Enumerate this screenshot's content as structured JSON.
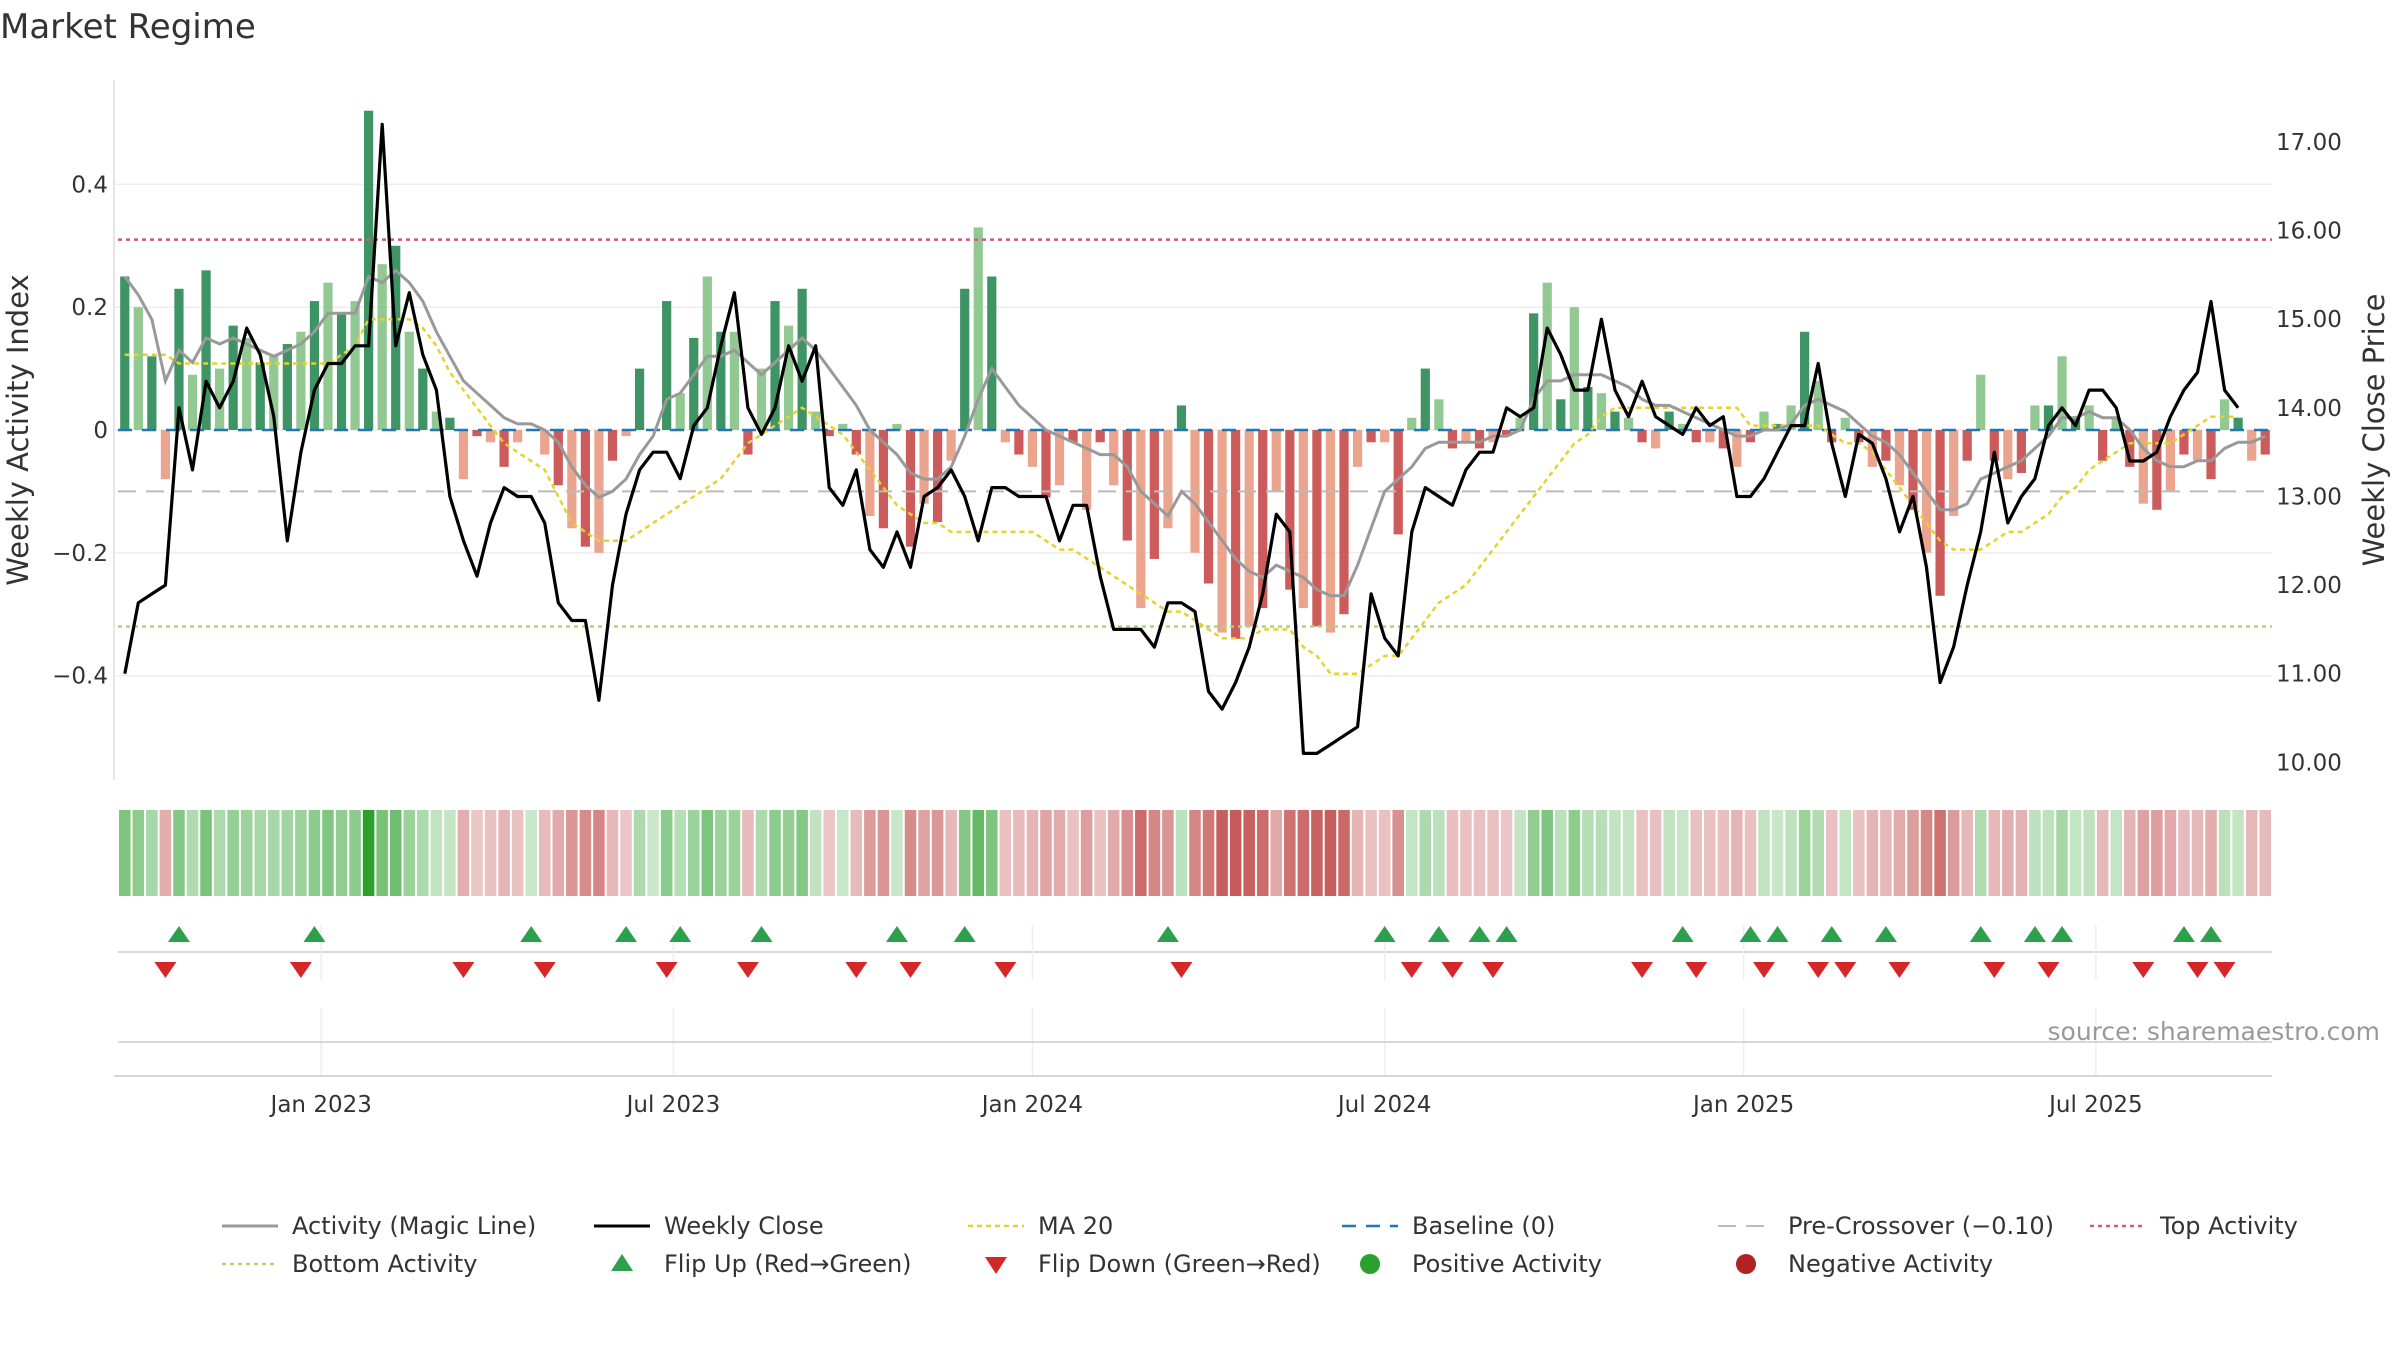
{
  "chart_data": {
    "type": "bar",
    "title": "Market Regime",
    "ylabel_left": "Weekly Activity Index",
    "ylabel_right": "Weekly Close Price",
    "ylim_left": [
      -0.57,
      0.57
    ],
    "ylim_right": [
      9.8,
      17.7
    ],
    "y_ticks_left": [
      {
        "value": 0.4,
        "label": "0.4"
      },
      {
        "value": 0.2,
        "label": "0.2"
      },
      {
        "value": 0,
        "label": "0"
      },
      {
        "value": -0.2,
        "label": "−0.2"
      },
      {
        "value": -0.4,
        "label": "−0.4"
      }
    ],
    "y_ticks_right": [
      {
        "value": 17,
        "label": "17.00"
      },
      {
        "value": 16,
        "label": "16.00"
      },
      {
        "value": 15,
        "label": "15.00"
      },
      {
        "value": 14,
        "label": "14.00"
      },
      {
        "value": 13,
        "label": "13.00"
      },
      {
        "value": 12,
        "label": "12.00"
      },
      {
        "value": 11,
        "label": "11.00"
      },
      {
        "value": 10,
        "label": "10.00"
      }
    ],
    "x_ticks": [
      {
        "index": 14.5,
        "label": "Jan 2023"
      },
      {
        "index": 40.5,
        "label": "Jul 2023"
      },
      {
        "index": 67,
        "label": "Jan 2024"
      },
      {
        "index": 93,
        "label": "Jul 2024"
      },
      {
        "index": 119.5,
        "label": "Jan 2025"
      },
      {
        "index": 145.5,
        "label": "Jul 2025"
      }
    ],
    "reference_lines": {
      "top_activity": 0.31,
      "bottom_activity": -0.32,
      "pre_crossover": -0.1,
      "baseline": 0
    },
    "activity": [
      0.25,
      0.2,
      0.12,
      -0.08,
      0.23,
      0.09,
      0.26,
      0.1,
      0.17,
      0.15,
      0.11,
      0.12,
      0.14,
      0.16,
      0.21,
      0.24,
      0.19,
      0.21,
      0.52,
      0.27,
      0.3,
      0.16,
      0.1,
      0.03,
      0.02,
      -0.08,
      -0.01,
      -0.02,
      -0.06,
      -0.02,
      0.0,
      -0.04,
      -0.09,
      -0.16,
      -0.19,
      -0.2,
      -0.05,
      -0.01,
      0.1,
      0.0,
      0.21,
      0.06,
      0.15,
      0.25,
      0.16,
      0.16,
      -0.04,
      0.1,
      0.21,
      0.17,
      0.23,
      0.03,
      -0.01,
      0.01,
      -0.04,
      -0.14,
      -0.16,
      0.01,
      -0.19,
      -0.12,
      -0.15,
      -0.05,
      0.23,
      0.33,
      0.25,
      -0.02,
      -0.04,
      -0.06,
      -0.11,
      -0.09,
      -0.02,
      -0.13,
      -0.02,
      -0.09,
      -0.18,
      -0.29,
      -0.21,
      -0.16,
      0.04,
      -0.2,
      -0.25,
      -0.33,
      -0.34,
      -0.32,
      -0.29,
      -0.1,
      -0.26,
      -0.29,
      -0.32,
      -0.33,
      -0.3,
      -0.06,
      -0.02,
      -0.02,
      -0.17,
      0.02,
      0.1,
      0.05,
      -0.03,
      -0.02,
      -0.03,
      -0.02,
      -0.01,
      0.02,
      0.19,
      0.24,
      0.05,
      0.2,
      0.07,
      0.06,
      0.03,
      0.02,
      -0.02,
      -0.03,
      0.03,
      0.01,
      -0.02,
      -0.02,
      -0.03,
      -0.06,
      -0.02,
      0.03,
      0.01,
      0.04,
      0.16,
      0.08,
      -0.02,
      0.02,
      -0.02,
      -0.06,
      -0.05,
      -0.09,
      -0.13,
      -0.2,
      -0.27,
      -0.14,
      -0.05,
      0.09,
      -0.05,
      -0.08,
      -0.07,
      0.04,
      0.04,
      0.12,
      0.02,
      0.04,
      -0.05,
      0.02,
      -0.06,
      -0.12,
      -0.13,
      -0.1,
      -0.04,
      -0.05,
      -0.08,
      0.05,
      0.02,
      -0.05,
      -0.04
    ],
    "activity_line": [
      0.25,
      0.22,
      0.18,
      0.08,
      0.13,
      0.11,
      0.15,
      0.14,
      0.15,
      0.14,
      0.13,
      0.12,
      0.13,
      0.14,
      0.16,
      0.19,
      0.19,
      0.19,
      0.25,
      0.24,
      0.26,
      0.24,
      0.21,
      0.16,
      0.12,
      0.08,
      0.06,
      0.04,
      0.02,
      0.01,
      0.01,
      0.0,
      -0.02,
      -0.06,
      -0.09,
      -0.11,
      -0.1,
      -0.08,
      -0.04,
      -0.01,
      0.05,
      0.06,
      0.09,
      0.12,
      0.12,
      0.13,
      0.11,
      0.09,
      0.11,
      0.13,
      0.15,
      0.13,
      0.1,
      0.07,
      0.04,
      0.0,
      -0.02,
      -0.04,
      -0.07,
      -0.08,
      -0.08,
      -0.06,
      -0.01,
      0.05,
      0.1,
      0.07,
      0.04,
      0.02,
      0.0,
      -0.01,
      -0.02,
      -0.03,
      -0.04,
      -0.04,
      -0.06,
      -0.1,
      -0.12,
      -0.14,
      -0.1,
      -0.12,
      -0.15,
      -0.18,
      -0.21,
      -0.23,
      -0.24,
      -0.22,
      -0.23,
      -0.24,
      -0.26,
      -0.27,
      -0.27,
      -0.22,
      -0.16,
      -0.1,
      -0.08,
      -0.06,
      -0.03,
      -0.02,
      -0.02,
      -0.02,
      -0.02,
      -0.01,
      -0.01,
      0.0,
      0.05,
      0.08,
      0.08,
      0.09,
      0.09,
      0.09,
      0.08,
      0.07,
      0.05,
      0.04,
      0.04,
      0.03,
      0.02,
      0.01,
      0.0,
      -0.01,
      -0.01,
      0.0,
      0.0,
      0.01,
      0.04,
      0.05,
      0.04,
      0.03,
      0.01,
      -0.01,
      -0.02,
      -0.04,
      -0.07,
      -0.1,
      -0.13,
      -0.13,
      -0.12,
      -0.08,
      -0.07,
      -0.06,
      -0.05,
      -0.03,
      -0.01,
      0.02,
      0.02,
      0.03,
      0.02,
      0.02,
      0.0,
      -0.03,
      -0.05,
      -0.06,
      -0.06,
      -0.05,
      -0.05,
      -0.03,
      -0.02,
      -0.02,
      -0.01
    ],
    "weekly_close": [
      11.0,
      11.8,
      11.9,
      12.0,
      14.0,
      13.3,
      14.3,
      14.0,
      14.3,
      14.9,
      14.6,
      13.9,
      12.5,
      13.5,
      14.2,
      14.5,
      14.5,
      14.7,
      14.7,
      17.2,
      14.7,
      15.3,
      14.6,
      14.2,
      13.0,
      12.5,
      12.1,
      12.7,
      13.1,
      13.0,
      13.0,
      12.7,
      11.8,
      11.6,
      11.6,
      10.7,
      12.0,
      12.8,
      13.3,
      13.5,
      13.5,
      13.2,
      13.8,
      14.0,
      14.7,
      15.3,
      14.0,
      13.7,
      14.0,
      14.7,
      14.3,
      14.7,
      13.1,
      12.9,
      13.3,
      12.4,
      12.2,
      12.6,
      12.2,
      13.0,
      13.1,
      13.3,
      13.0,
      12.5,
      13.1,
      13.1,
      13.0,
      13.0,
      13.0,
      12.5,
      12.9,
      12.9,
      12.1,
      11.5,
      11.5,
      11.5,
      11.3,
      11.8,
      11.8,
      11.7,
      10.8,
      10.6,
      10.9,
      11.3,
      11.9,
      12.8,
      12.6,
      10.1,
      10.1,
      10.2,
      10.3,
      10.4,
      11.9,
      11.4,
      11.2,
      12.6,
      13.1,
      13.0,
      12.9,
      13.3,
      13.5,
      13.5,
      14.0,
      13.9,
      14.0,
      14.9,
      14.6,
      14.2,
      14.2,
      15.0,
      14.2,
      13.9,
      14.3,
      13.9,
      13.8,
      13.7,
      14.0,
      13.8,
      13.9,
      13.0,
      13.0,
      13.2,
      13.5,
      13.8,
      13.8,
      14.5,
      13.6,
      13.0,
      13.7,
      13.6,
      13.2,
      12.6,
      13.0,
      12.2,
      10.9,
      11.3,
      12.0,
      12.6,
      13.5,
      12.7,
      13.0,
      13.2,
      13.8,
      14.0,
      13.8,
      14.2,
      14.2,
      14.0,
      13.4,
      13.4,
      13.5,
      13.9,
      14.2,
      14.4,
      15.2,
      14.2,
      14.0
    ],
    "ma20": [
      14.6,
      14.6,
      14.6,
      14.6,
      14.5,
      14.5,
      14.5,
      14.5,
      14.5,
      14.5,
      14.5,
      14.5,
      14.5,
      14.5,
      14.5,
      14.5,
      14.6,
      14.7,
      15.0,
      15.0,
      15.0,
      15.0,
      14.9,
      14.7,
      14.4,
      14.2,
      14.0,
      13.8,
      13.6,
      13.5,
      13.4,
      13.3,
      13.0,
      12.7,
      12.6,
      12.5,
      12.5,
      12.5,
      12.6,
      12.7,
      12.8,
      12.9,
      13.0,
      13.1,
      13.2,
      13.4,
      13.6,
      13.7,
      13.8,
      13.9,
      14.0,
      13.9,
      13.8,
      13.7,
      13.5,
      13.3,
      13.1,
      12.9,
      12.8,
      12.7,
      12.7,
      12.6,
      12.6,
      12.6,
      12.6,
      12.6,
      12.6,
      12.6,
      12.5,
      12.4,
      12.4,
      12.3,
      12.2,
      12.1,
      12.0,
      11.9,
      11.8,
      11.7,
      11.7,
      11.6,
      11.5,
      11.4,
      11.4,
      11.4,
      11.5,
      11.5,
      11.5,
      11.3,
      11.2,
      11.0,
      11.0,
      11.0,
      11.1,
      11.2,
      11.2,
      11.4,
      11.6,
      11.8,
      11.9,
      12.0,
      12.2,
      12.4,
      12.6,
      12.8,
      13.0,
      13.2,
      13.4,
      13.6,
      13.7,
      13.9,
      14.0,
      14.0,
      14.0,
      14.0,
      14.0,
      14.0,
      14.0,
      14.0,
      14.0,
      14.0,
      13.8,
      13.8,
      13.8,
      13.8,
      13.8,
      13.8,
      13.7,
      13.6,
      13.6,
      13.5,
      13.3,
      13.1,
      12.9,
      12.7,
      12.5,
      12.4,
      12.4,
      12.4,
      12.5,
      12.6,
      12.6,
      12.7,
      12.8,
      13.0,
      13.1,
      13.3,
      13.4,
      13.5,
      13.6,
      13.6,
      13.6,
      13.6,
      13.7,
      13.8,
      13.9,
      13.9,
      13.9
    ],
    "flip_up": [
      4,
      14,
      30,
      37,
      41,
      47,
      57,
      62,
      77,
      93,
      97,
      100,
      102,
      115,
      120,
      122,
      126,
      130,
      137,
      141,
      143,
      152,
      154
    ],
    "flip_down": [
      3,
      13,
      25,
      31,
      40,
      46,
      54,
      58,
      65,
      78,
      95,
      98,
      101,
      112,
      116,
      121,
      125,
      127,
      131,
      138,
      142,
      149,
      153,
      155
    ],
    "legend": [
      {
        "key": "activity_line",
        "label": "Activity (Magic Line)"
      },
      {
        "key": "close",
        "label": "Weekly Close"
      },
      {
        "key": "ma20",
        "label": "MA 20"
      },
      {
        "key": "baseline",
        "label": "Baseline (0)"
      },
      {
        "key": "precross",
        "label": "Pre-Crossover (−0.10)"
      },
      {
        "key": "top",
        "label": "Top Activity"
      },
      {
        "key": "bottom",
        "label": "Bottom Activity"
      },
      {
        "key": "flip_up",
        "label": "Flip Up (Red→Green)"
      },
      {
        "key": "flip_down",
        "label": "Flip Down (Green→Red)"
      },
      {
        "key": "pos",
        "label": "Positive Activity"
      },
      {
        "key": "neg",
        "label": "Negative Activity"
      }
    ],
    "source": "source: sharemaestro.com"
  },
  "colors": {
    "pos_strong": "#2e8b57",
    "pos_light": "#7fc07f",
    "neg_strong": "#c84e4e",
    "neg_light": "#e8957a",
    "activity_line": "#999999",
    "close": "#000000",
    "ma20": "#e6d22a",
    "baseline": "#1f77b4",
    "precross": "#bbbbbb",
    "top": "#d05a85",
    "bottom": "#a8d870",
    "flip_up": "#2ca04c",
    "flip_down": "#d62728",
    "pos_dot": "#2ca02c",
    "neg_dot": "#b22222"
  }
}
